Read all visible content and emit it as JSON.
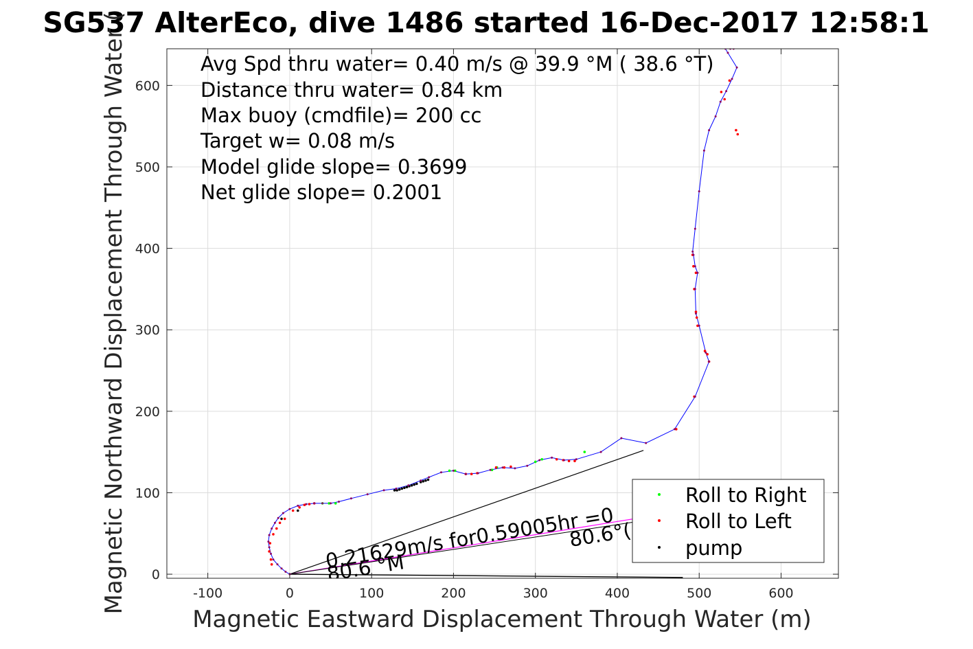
{
  "chart_data": {
    "type": "line",
    "title": "SG537 AlterEco, dive 1486 started 16-Dec-2017 12:58:1",
    "xlabel": "Magnetic Eastward Displacement Through Water (m)",
    "ylabel": "Magnetic Northward Displacement Through Water (",
    "xlim": [
      -150,
      670
    ],
    "ylim": [
      -5,
      645
    ],
    "xticks": [
      -100,
      0,
      100,
      200,
      300,
      400,
      500,
      600
    ],
    "yticks": [
      0,
      100,
      200,
      300,
      400,
      500,
      600
    ],
    "grid": true,
    "legend": {
      "placement": "bottom-right",
      "entries": [
        {
          "label": "Roll to Right",
          "color": "#00ff00"
        },
        {
          "label": "Roll to Left",
          "color": "#ff0000"
        },
        {
          "label": "pump",
          "color": "#000000"
        }
      ]
    },
    "annotations": [
      "Avg Spd thru water=  0.40 m/s @  39.9 °M ( 38.6 °T)",
      "Distance thru water=  0.84 km",
      "Max buoy (cmdfile)= 200 cc",
      "Target w= 0.08 m/s",
      "Model glide slope= 0.3699",
      "Net glide slope= 0.2001"
    ],
    "current_label": "0.21629m/s for0.59005hr =0",
    "heading_label_1": "80.6 °M",
    "heading_label_2": "80.6°(",
    "series": [
      {
        "role": "track",
        "color": "#0000ff",
        "x": [
          0,
          -5,
          -10,
          -15,
          -20,
          -23,
          -25,
          -26,
          -25,
          -22,
          -18,
          -14,
          -8,
          0,
          10,
          20,
          30,
          40,
          50,
          60,
          75,
          95,
          115,
          130,
          145,
          160,
          170,
          185,
          200,
          215,
          230,
          245,
          260,
          275,
          290,
          305,
          320,
          335,
          350,
          380,
          405,
          435,
          470,
          495,
          512,
          508,
          500,
          496,
          495,
          498,
          495,
          493,
          492,
          495,
          500,
          506,
          512,
          520,
          526,
          533,
          540,
          546,
          535,
          532,
          538,
          542
        ],
        "y": [
          0,
          3,
          7,
          12,
          18,
          25,
          33,
          40,
          48,
          56,
          63,
          69,
          75,
          80,
          84,
          86,
          87,
          87,
          87,
          89,
          93,
          98,
          103,
          105,
          109,
          115,
          119,
          125,
          127,
          123,
          124,
          128,
          131,
          130,
          133,
          140,
          143,
          140,
          141,
          150,
          167,
          161,
          178,
          218,
          261,
          272,
          305,
          320,
          350,
          370,
          378,
          392,
          396,
          424,
          470,
          520,
          545,
          562,
          580,
          593,
          608,
          622,
          640,
          645,
          645,
          645
        ]
      },
      {
        "role": "roll-right",
        "color": "#00ff00",
        "x": [
          40,
          48,
          56,
          195,
          202,
          247,
          253,
          300,
          308,
          360
        ],
        "y": [
          87,
          87,
          87,
          127,
          127,
          128,
          131,
          138,
          141,
          150
        ]
      },
      {
        "role": "roll-left",
        "color": "#ff0000",
        "x": [
          -22,
          -23,
          -25,
          -24,
          -20,
          -16,
          -12,
          -6,
          4,
          12,
          18,
          24,
          30,
          215,
          222,
          229,
          252,
          262,
          270,
          326,
          334,
          341,
          348,
          472,
          494,
          512,
          510,
          507,
          498,
          497,
          496,
          494,
          496,
          493,
          492,
          527,
          531,
          537,
          545,
          547
        ],
        "y": [
          12,
          18,
          28,
          38,
          49,
          56,
          63,
          68,
          78,
          82,
          85,
          86,
          87,
          123,
          123,
          124,
          131,
          131,
          132,
          141,
          140,
          139,
          139,
          178,
          218,
          261,
          270,
          274,
          305,
          315,
          322,
          350,
          370,
          378,
          392,
          592,
          583,
          606,
          545,
          540
        ]
      },
      {
        "role": "pump",
        "color": "#000000",
        "x": [
          128,
          131,
          134,
          137,
          140,
          143,
          146,
          149,
          152,
          155,
          160,
          163,
          166,
          169,
          -10,
          10
        ],
        "y": [
          103,
          103,
          104,
          105,
          106,
          107,
          108,
          109,
          110,
          111,
          113,
          114,
          115,
          116,
          68,
          78
        ]
      },
      {
        "role": "heading-line",
        "color": "#000000",
        "x": [
          0,
          432
        ],
        "y": [
          0,
          152
        ]
      },
      {
        "role": "current-line",
        "color": "#ff00ff",
        "x": [
          0,
          433
        ],
        "y": [
          0,
          70
        ]
      },
      {
        "role": "current-line-black",
        "color": "#000000",
        "x": [
          0,
          460
        ],
        "y": [
          0,
          70
        ]
      },
      {
        "role": "baseline-line",
        "color": "#000000",
        "x": [
          0,
          480
        ],
        "y": [
          0,
          -4
        ]
      }
    ]
  }
}
